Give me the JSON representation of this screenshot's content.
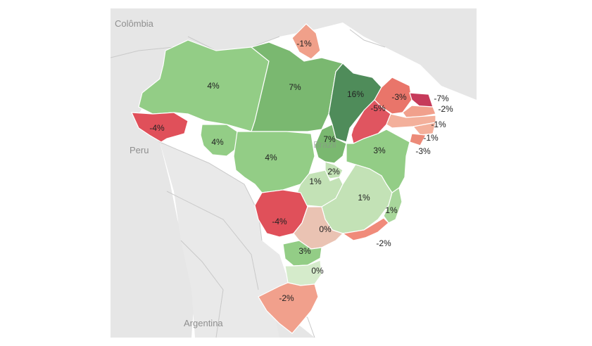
{
  "countries": [
    {
      "name": "Colômbia"
    },
    {
      "name": "Peru"
    },
    {
      "name": "Argentina"
    },
    {
      "name": "Brazil"
    }
  ],
  "states": [
    {
      "value": "4%",
      "color": "#93cd86"
    },
    {
      "value": "7%",
      "color": "#7ab870"
    },
    {
      "value": "-1%",
      "color": "#f0a08a"
    },
    {
      "value": "16%",
      "color": "#4f8c5a"
    },
    {
      "value": "-3%",
      "color": "#e9756a"
    },
    {
      "value": "-5%",
      "color": "#e05560"
    },
    {
      "value": "-7%",
      "color": "#c63a5a"
    },
    {
      "value": "-2%",
      "color": "#f1a08c"
    },
    {
      "value": "-1%",
      "color": "#f3b09b"
    },
    {
      "value": "-1%",
      "color": "#f3b09b"
    },
    {
      "value": "-3%",
      "color": "#ec8a78"
    },
    {
      "value": "-4%",
      "color": "#e0505a"
    },
    {
      "value": "4%",
      "color": "#93cd86"
    },
    {
      "value": "4%",
      "color": "#93cd86"
    },
    {
      "value": "7%",
      "color": "#7ab870"
    },
    {
      "value": "3%",
      "color": "#93cd86"
    },
    {
      "value": "2%",
      "color": "#c3e2b6"
    },
    {
      "value": "1%",
      "color": "#c3e2b6"
    },
    {
      "value": "1%",
      "color": "#c3e2b6"
    },
    {
      "value": "1%",
      "color": "#a8d79b"
    },
    {
      "value": "-4%",
      "color": "#e0505a"
    },
    {
      "value": "0%",
      "color": "#eac3b3"
    },
    {
      "value": "-2%",
      "color": "#f08b7a"
    },
    {
      "value": "3%",
      "color": "#93cd86"
    },
    {
      "value": "0%",
      "color": "#d5ebcb"
    },
    {
      "value": "-2%",
      "color": "#f1a08c"
    }
  ]
}
